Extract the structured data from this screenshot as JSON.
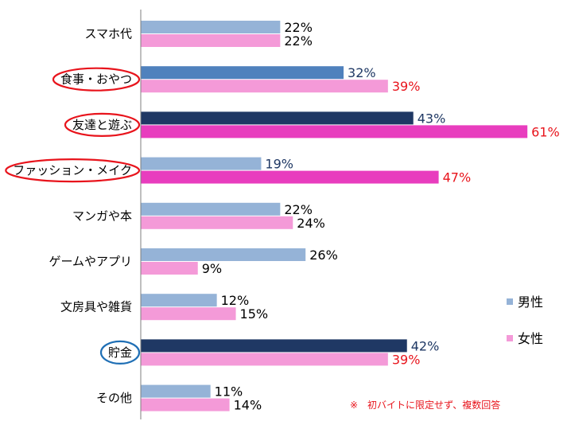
{
  "chart_data": {
    "type": "bar",
    "orientation": "horizontal",
    "categories": [
      "スマホ代",
      "食事・おやつ",
      "友達と遊ぶ",
      "ファッション・メイク",
      "マンガや本",
      "ゲームやアプリ",
      "文房具や雑貨",
      "貯金",
      "その他"
    ],
    "series": [
      {
        "name": "男性",
        "values": [
          22,
          32,
          43,
          19,
          22,
          26,
          12,
          42,
          11
        ],
        "unit": "%"
      },
      {
        "name": "女性",
        "values": [
          22,
          39,
          61,
          47,
          24,
          9,
          15,
          39,
          14
        ],
        "unit": "%"
      }
    ],
    "value_labels": {
      "男性": [
        "22%",
        "32%",
        "43%",
        "19%",
        "22%",
        "26%",
        "12%",
        "42%",
        "11%"
      ],
      "女性": [
        "22%",
        "39%",
        "61%",
        "47%",
        "24%",
        "9%",
        "15%",
        "39%",
        "14%"
      ]
    },
    "xlim": [
      0,
      100
    ],
    "grid": false,
    "legend_position": "right",
    "highlights": {
      "食事・おやつ": "red-circle",
      "友達と遊ぶ": "red-circle",
      "ファッション・メイク": "red-circle",
      "貯金": "blue-circle"
    },
    "emphasized_categories": [
      "食事・おやつ",
      "友達と遊ぶ",
      "ファッション・メイク",
      "貯金"
    ],
    "note": "※　初バイトに限定せず、複数回答"
  },
  "colors": {
    "male_normal": "#95b3d7",
    "male_strong": "#1f3864",
    "male_mid": "#4f81bd",
    "female_normal": "#f49ad8",
    "female_strong": "#e83dbe",
    "label_normal": "#000000",
    "label_male_emph": "#1f3864",
    "label_female_emph": "#e8141c",
    "circle_red": "#e8141c",
    "circle_blue": "#1f6fb5",
    "axis": "#7f7f7f"
  }
}
